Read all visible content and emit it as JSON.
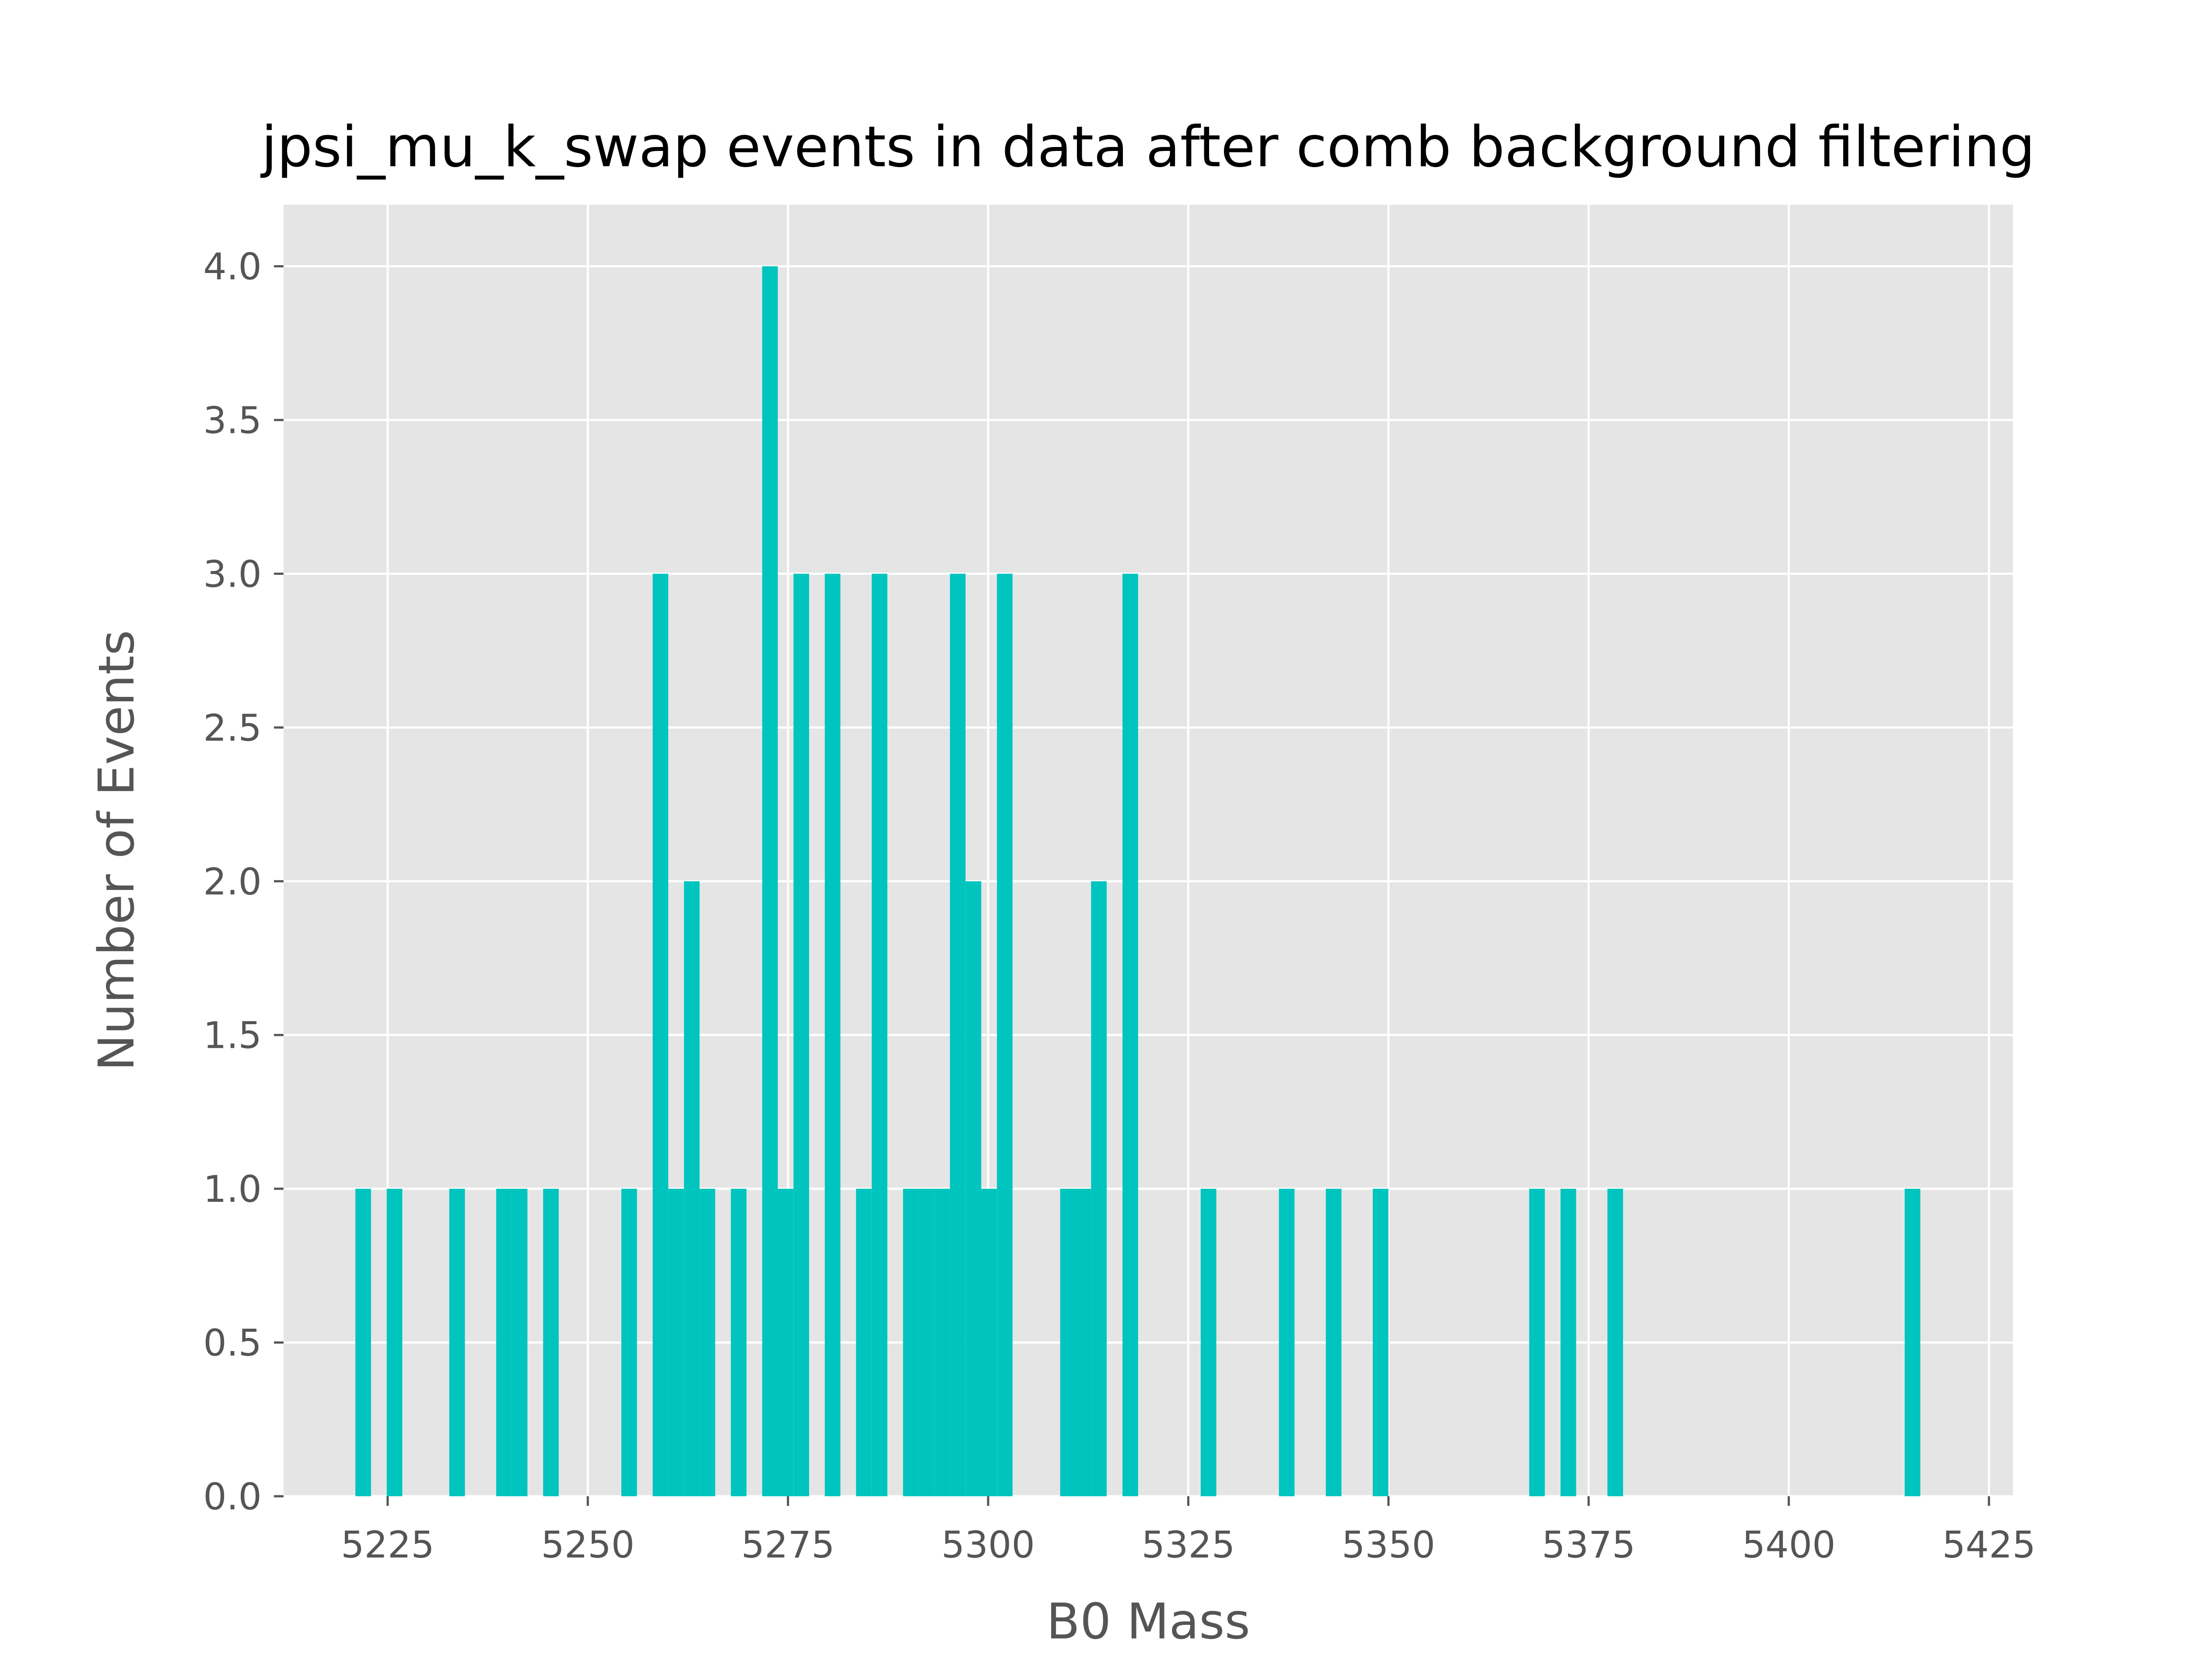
{
  "chart_data": {
    "type": "bar",
    "title": "jpsi_mu_k_swap events in data after comb background filtering",
    "xlabel": "B0 Mass",
    "ylabel": "Number of Events",
    "xlim": [
      5212,
      5428
    ],
    "ylim": [
      0,
      4.2
    ],
    "xticks": [
      5225,
      5250,
      5275,
      5300,
      5325,
      5350,
      5375,
      5400,
      5425
    ],
    "yticks": [
      0.0,
      0.5,
      1.0,
      1.5,
      2.0,
      2.5,
      3.0,
      3.5,
      4.0
    ],
    "xtick_labels": [
      "5225",
      "5250",
      "5275",
      "5300",
      "5325",
      "5350",
      "5375",
      "5400",
      "5425"
    ],
    "ytick_labels": [
      "0.0",
      "0.5",
      "1.0",
      "1.5",
      "2.0",
      "2.5",
      "3.0",
      "3.5",
      "4.0"
    ],
    "grid": true,
    "bin_width": 1.95,
    "bins": [
      {
        "x": 5220.97,
        "count": 1
      },
      {
        "x": 5224.88,
        "count": 1
      },
      {
        "x": 5232.7,
        "count": 1
      },
      {
        "x": 5238.56,
        "count": 1
      },
      {
        "x": 5240.51,
        "count": 1
      },
      {
        "x": 5244.42,
        "count": 1
      },
      {
        "x": 5254.19,
        "count": 1
      },
      {
        "x": 5258.1,
        "count": 3
      },
      {
        "x": 5260.05,
        "count": 1
      },
      {
        "x": 5262.01,
        "count": 2
      },
      {
        "x": 5263.96,
        "count": 1
      },
      {
        "x": 5267.87,
        "count": 1
      },
      {
        "x": 5271.78,
        "count": 4
      },
      {
        "x": 5273.73,
        "count": 1
      },
      {
        "x": 5275.69,
        "count": 3
      },
      {
        "x": 5279.6,
        "count": 3
      },
      {
        "x": 5283.5,
        "count": 1
      },
      {
        "x": 5285.46,
        "count": 3
      },
      {
        "x": 5289.37,
        "count": 1
      },
      {
        "x": 5291.32,
        "count": 1
      },
      {
        "x": 5293.28,
        "count": 1
      },
      {
        "x": 5295.23,
        "count": 3
      },
      {
        "x": 5297.19,
        "count": 2
      },
      {
        "x": 5299.14,
        "count": 1
      },
      {
        "x": 5301.1,
        "count": 3
      },
      {
        "x": 5309.0,
        "count": 1
      },
      {
        "x": 5310.91,
        "count": 1
      },
      {
        "x": 5312.86,
        "count": 2
      },
      {
        "x": 5316.78,
        "count": 3
      },
      {
        "x": 5326.55,
        "count": 1
      },
      {
        "x": 5336.32,
        "count": 1
      },
      {
        "x": 5342.18,
        "count": 1
      },
      {
        "x": 5348.04,
        "count": 1
      },
      {
        "x": 5367.58,
        "count": 1
      },
      {
        "x": 5371.49,
        "count": 1
      },
      {
        "x": 5377.35,
        "count": 1
      },
      {
        "x": 5414.48,
        "count": 1
      }
    ],
    "colors": {
      "bar": "#00C4BE",
      "plot_background": "#E5E5E5",
      "grid": "#FFFFFF",
      "tick": "#555555"
    }
  }
}
